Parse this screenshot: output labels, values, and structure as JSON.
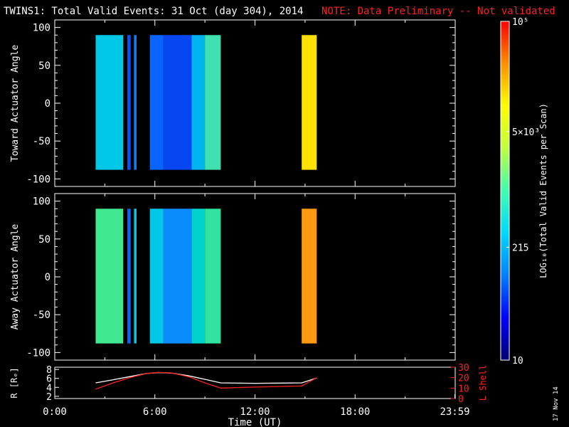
{
  "title": "TWINS1: Total Valid Events: 31 Oct (day 304), 2014",
  "note": "NOTE: Data Preliminary -- Not validated",
  "stamp": "17 Nov 14",
  "colors": {
    "background": "#000000",
    "axes": "#ffffff",
    "note": "#ff2020",
    "lshell": "#ff2020",
    "r": "#ffffff"
  },
  "chart_data": [
    {
      "type": "heatmap",
      "panel": "toward",
      "ylabel": "Toward Actuator Angle",
      "ylim": [
        -110,
        110
      ],
      "yticks": [
        100,
        50,
        0,
        -50,
        -100
      ],
      "xlim_hours": [
        0,
        24
      ],
      "coverage_angle": [
        -88,
        90
      ],
      "segments": [
        {
          "start_h": 2.45,
          "end_h": 4.1,
          "color": "#00c8e6"
        },
        {
          "start_h": 4.35,
          "end_h": 4.55,
          "color": "#0a50ff"
        },
        {
          "start_h": 4.75,
          "end_h": 4.9,
          "color": "#0a82ff"
        },
        {
          "start_h": 5.7,
          "end_h": 6.5,
          "color": "#0a64ff"
        },
        {
          "start_h": 6.5,
          "end_h": 8.2,
          "color": "#0546f0"
        },
        {
          "start_h": 8.2,
          "end_h": 9.0,
          "color": "#00b4f0"
        },
        {
          "start_h": 9.0,
          "end_h": 9.95,
          "color": "#40e0b0"
        },
        {
          "start_h": 14.8,
          "end_h": 15.7,
          "color": "#ffe000"
        }
      ]
    },
    {
      "type": "heatmap",
      "panel": "away",
      "ylabel": "Away Actuator Angle",
      "ylim": [
        -110,
        110
      ],
      "yticks": [
        100,
        50,
        0,
        -50,
        -100
      ],
      "xlim_hours": [
        0,
        24
      ],
      "coverage_angle": [
        -88,
        90
      ],
      "segments": [
        {
          "start_h": 2.45,
          "end_h": 4.1,
          "color": "#40e890"
        },
        {
          "start_h": 4.35,
          "end_h": 4.55,
          "color": "#0a64ff"
        },
        {
          "start_h": 4.75,
          "end_h": 4.9,
          "color": "#00c8e6"
        },
        {
          "start_h": 5.7,
          "end_h": 6.5,
          "color": "#00c8e6"
        },
        {
          "start_h": 6.5,
          "end_h": 8.2,
          "color": "#0a8cff"
        },
        {
          "start_h": 8.2,
          "end_h": 9.0,
          "color": "#00d2d0"
        },
        {
          "start_h": 9.0,
          "end_h": 9.95,
          "color": "#30e4a0"
        },
        {
          "start_h": 14.8,
          "end_h": 15.7,
          "color": "#ff9a10"
        }
      ]
    },
    {
      "type": "line",
      "panel": "orbit",
      "ylabel_left": "R [Rₑ]",
      "ylabel_right": "L Shell",
      "yticks_left": [
        2,
        4,
        6,
        8
      ],
      "ylim_left": [
        1.5,
        8.5
      ],
      "yticks_right": [
        0,
        10,
        20,
        30
      ],
      "ylim_right": [
        0,
        30
      ],
      "xlim_hours": [
        0,
        24
      ],
      "xticks": [
        "0:00",
        "6:00",
        "12:00",
        "18:00",
        "23:59"
      ],
      "xlabel": "Time (UT)",
      "series": [
        {
          "axis": "left",
          "color": "#ffffff",
          "x": [
            2.45,
            3.5,
            4.5,
            5.5,
            6.2,
            7.0,
            8.0,
            9.0,
            9.95,
            12.0,
            14.8,
            15.7
          ],
          "y": [
            5.0,
            5.7,
            6.4,
            7.1,
            7.3,
            7.2,
            6.6,
            5.8,
            5.0,
            4.9,
            5.0,
            6.1
          ]
        },
        {
          "axis": "right",
          "color": "#ff2020",
          "x": [
            2.45,
            3.5,
            4.5,
            5.5,
            6.2,
            7.0,
            8.0,
            9.0,
            9.95,
            12.0,
            14.8,
            15.7
          ],
          "y": [
            9,
            15,
            20,
            24,
            25,
            24.5,
            21,
            15,
            10,
            11,
            12,
            20
          ]
        }
      ]
    },
    {
      "type": "colorbar",
      "label": "LOG₁₀(Total Valid Events per Scan)",
      "scale": "log",
      "range": [
        10,
        100000
      ],
      "ticks": [
        {
          "value": 100000,
          "label": "10⁵"
        },
        {
          "value": 5000,
          "label": "5×10³"
        },
        {
          "value": 215,
          "label": "215"
        },
        {
          "value": 10,
          "label": "10"
        }
      ],
      "stops": [
        "#000070",
        "#0000ff",
        "#0080ff",
        "#00d8ff",
        "#40ffb0",
        "#c0ff40",
        "#ffff00",
        "#ff9000",
        "#ff0000"
      ]
    }
  ]
}
